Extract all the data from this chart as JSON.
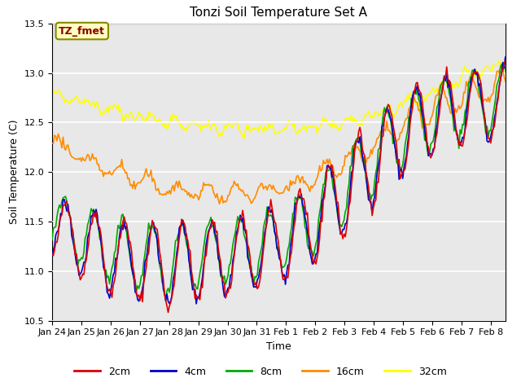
{
  "title": "Tonzi Soil Temperature Set A",
  "xlabel": "Time",
  "ylabel": "Soil Temperature (C)",
  "annotation": "TZ_fmet",
  "annotation_color": "#8B0000",
  "annotation_bg": "#FFFFC0",
  "ylim": [
    10.5,
    13.5
  ],
  "xlim_days": 15.5,
  "xtick_labels": [
    "Jan 24",
    "Jan 25",
    "Jan 26",
    "Jan 27",
    "Jan 28",
    "Jan 29",
    "Jan 30",
    "Jan 31",
    "Feb 1",
    "Feb 2",
    "Feb 3",
    "Feb 4",
    "Feb 5",
    "Feb 6",
    "Feb 7",
    "Feb 8"
  ],
  "colors": {
    "2cm": "#DD0000",
    "4cm": "#0000CC",
    "8cm": "#00AA00",
    "16cm": "#FF8C00",
    "32cm": "#FFFF00"
  },
  "bg_color": "#E8E8E8",
  "fig_bg": "#FFFFFF"
}
